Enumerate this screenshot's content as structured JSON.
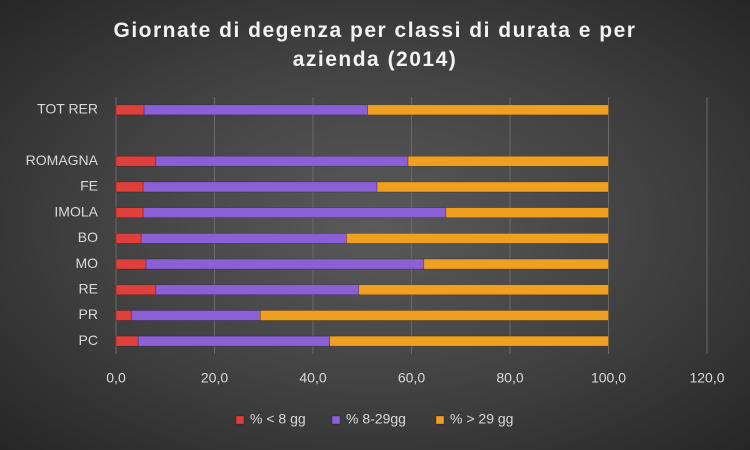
{
  "chart_data": {
    "type": "stacked-bar-horizontal",
    "title": "Giornate di degenza per classi di durata e per azienda (2014)",
    "categories": [
      "TOT RER",
      null,
      "ROMAGNA",
      "FE",
      "IMOLA",
      "BO",
      "MO",
      "RE",
      "PR",
      "PC"
    ],
    "series": [
      {
        "name": "% < 8 gg",
        "color": "#e0403c",
        "values": [
          5.7,
          null,
          8.1,
          5.5,
          5.5,
          5.1,
          6.1,
          8.1,
          3.1,
          4.5
        ]
      },
      {
        "name": "% 8-29gg",
        "color": "#8b5fd6",
        "values": [
          45.4,
          null,
          51.2,
          47.5,
          61.5,
          41.7,
          56.4,
          41.2,
          26.2,
          38.9
        ]
      },
      {
        "name": "% > 29 gg",
        "color": "#f0a020",
        "values": [
          48.9,
          null,
          40.7,
          47.0,
          33.0,
          53.2,
          37.5,
          50.7,
          70.7,
          56.6
        ]
      }
    ],
    "xlim": [
      0,
      120
    ],
    "xticks": [
      {
        "value": 0,
        "label": "0,0"
      },
      {
        "value": 20,
        "label": "20,0"
      },
      {
        "value": 40,
        "label": "40,0"
      },
      {
        "value": 60,
        "label": "60,0"
      },
      {
        "value": 80,
        "label": "80,0"
      },
      {
        "value": 100,
        "label": "100,0"
      },
      {
        "value": 120,
        "label": "120,0"
      }
    ],
    "grid": true,
    "legend": "bottom"
  }
}
